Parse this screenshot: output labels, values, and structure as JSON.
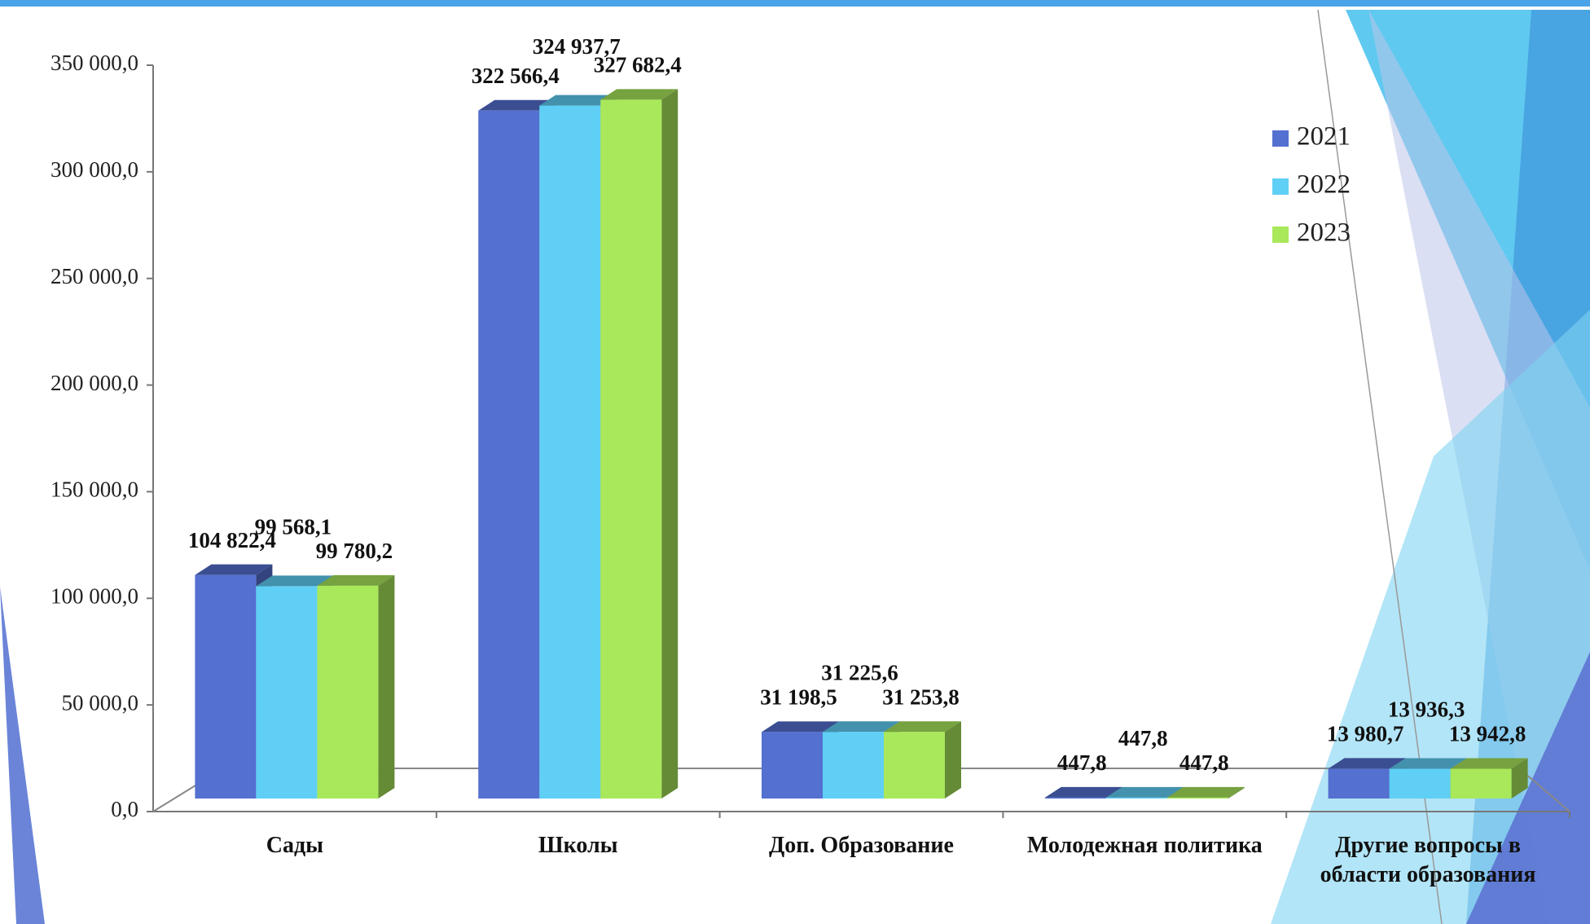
{
  "chart_data": {
    "type": "bar3d",
    "categories": [
      "Сады",
      "Школы",
      "Доп. Образование",
      "Молодежная политика",
      "Другие вопросы в области образования"
    ],
    "series": [
      {
        "name": "2021",
        "color": "#5470d0",
        "values": [
          104822.4,
          322566.4,
          31198.5,
          447.8,
          13980.7
        ],
        "value_labels": [
          "104 822,4",
          "322 566,4",
          "31 198,5",
          "447,8",
          "13 980,7"
        ]
      },
      {
        "name": "2022",
        "color": "#5fcff5",
        "values": [
          99568.1,
          324937.7,
          31225.6,
          447.8,
          13936.3
        ],
        "value_labels": [
          "99 568,1",
          "324 937,7",
          "31 225,6",
          "447,8",
          "13 936,3"
        ]
      },
      {
        "name": "2023",
        "color": "#a8e85a",
        "values": [
          99780.2,
          327682.4,
          31253.8,
          447.8,
          13942.8
        ],
        "value_labels": [
          "99 780,2",
          "327 682,4",
          "31 253,8",
          "447,8",
          "13 942,8"
        ]
      }
    ],
    "ylim": [
      0,
      350000
    ],
    "yticks": [
      {
        "value": 0,
        "label": "0,0"
      },
      {
        "value": 50000,
        "label": "50 000,0"
      },
      {
        "value": 100000,
        "label": "100 000,0"
      },
      {
        "value": 150000,
        "label": "150 000,0"
      },
      {
        "value": 200000,
        "label": "200 000,0"
      },
      {
        "value": 250000,
        "label": "250 000,0"
      },
      {
        "value": 300000,
        "label": "300 000,0"
      },
      {
        "value": 350000,
        "label": "350 000,0"
      }
    ],
    "legend": "top-right"
  }
}
